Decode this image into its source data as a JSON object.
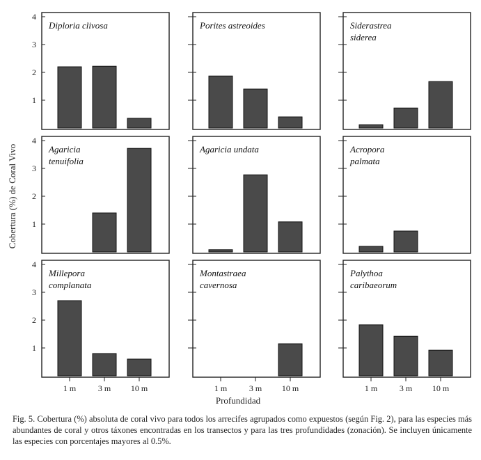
{
  "chart_data": {
    "type": "bar",
    "layout": "3x3 small multiples",
    "categories": [
      "1 m",
      "3 m",
      "10 m"
    ],
    "xlabel": "Profundidad",
    "ylabel": "Cobertura (%) de Coral Vivo",
    "ylim": [
      0,
      4
    ],
    "yticks": [
      "4",
      "3",
      "2",
      "1"
    ],
    "bar_color": "#4a4a4a",
    "panels": [
      {
        "name": "Diploria clivosa",
        "label_lines": [
          "Diploria clivosa"
        ],
        "values": [
          2.2,
          2.22,
          0.35
        ]
      },
      {
        "name": "Porites astreoides",
        "label_lines": [
          "Porites astreoides"
        ],
        "values": [
          1.87,
          1.4,
          0.4
        ]
      },
      {
        "name": "Siderastrea siderea",
        "label_lines": [
          "Siderastrea",
          "siderea"
        ],
        "values": [
          0.12,
          0.72,
          1.67
        ]
      },
      {
        "name": "Agaricia tenuifolia",
        "label_lines": [
          "Agaricia",
          "tenuifolia"
        ],
        "values": [
          0,
          1.4,
          3.72
        ]
      },
      {
        "name": "Agaricia undata",
        "label_lines": [
          "Agaricia undata"
        ],
        "values": [
          0.08,
          2.77,
          1.08
        ]
      },
      {
        "name": "Acropora palmata",
        "label_lines": [
          "Acropora",
          "palmata"
        ],
        "values": [
          0.2,
          0.75,
          0
        ]
      },
      {
        "name": "Millepora complanata",
        "label_lines": [
          "Millepora",
          "complanata"
        ],
        "values": [
          2.7,
          0.8,
          0.6
        ]
      },
      {
        "name": "Montastraea cavernosa",
        "label_lines": [
          "Montastraea",
          "cavernosa"
        ],
        "values": [
          0,
          0,
          1.15
        ]
      },
      {
        "name": "Palythoa caribaeorum",
        "label_lines": [
          "Palythoa",
          "caribaeorum"
        ],
        "values": [
          1.83,
          1.42,
          0.92
        ]
      }
    ]
  },
  "caption": "Fig. 5. Cobertura (%) absoluta de coral vivo para todos los arrecifes agrupados como expuestos (según Fig. 2), para las especies más abundantes de coral y otros táxones encontradas en los transectos y para las tres profundidades (zonación). Se incluyen únicamente las especies con porcentajes mayores al 0.5%."
}
